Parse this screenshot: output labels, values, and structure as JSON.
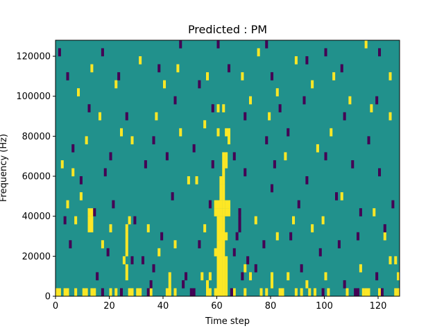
{
  "chart_data": {
    "type": "heatmap",
    "title": "Predicted : PM",
    "xlabel": "Time step",
    "ylabel": "Frequency (Hz)",
    "xlim": [
      0,
      128
    ],
    "ylim": [
      0,
      128000
    ],
    "x_ticks": [
      0,
      20,
      40,
      60,
      80,
      100,
      120
    ],
    "y_ticks": [
      0,
      20000,
      40000,
      60000,
      80000,
      100000,
      120000
    ],
    "x_tick_labels": [
      "0",
      "20",
      "40",
      "60",
      "80",
      "100",
      "120"
    ],
    "y_tick_labels": [
      "0",
      "20000",
      "40000",
      "60000",
      "80000",
      "100000",
      "120000"
    ],
    "colors": {
      "background": "#21918c",
      "low": "#440154",
      "high": "#fde725"
    },
    "rows": 32,
    "columns": 128,
    "cells_high": [
      [
        0,
        0,
        1
      ],
      [
        1,
        0,
        1
      ],
      [
        3,
        0,
        1
      ],
      [
        4,
        0,
        1
      ],
      [
        7,
        0,
        1
      ],
      [
        10,
        0,
        1
      ],
      [
        11,
        0,
        1
      ],
      [
        13,
        0,
        1
      ],
      [
        14,
        0,
        1
      ],
      [
        20,
        0,
        1
      ],
      [
        22,
        0,
        1
      ],
      [
        27,
        0,
        1
      ],
      [
        28,
        0,
        1
      ],
      [
        30,
        0,
        1
      ],
      [
        31,
        0,
        1
      ],
      [
        35,
        0,
        1
      ],
      [
        41,
        0,
        1
      ],
      [
        42,
        0,
        1
      ],
      [
        44,
        0,
        1
      ],
      [
        56,
        0,
        1
      ],
      [
        57,
        0,
        1
      ],
      [
        59,
        0,
        1
      ],
      [
        66,
        0,
        1
      ],
      [
        70,
        0,
        1
      ],
      [
        76,
        0,
        1
      ],
      [
        78,
        0,
        1
      ],
      [
        83,
        0,
        1
      ],
      [
        84,
        0,
        1
      ],
      [
        89,
        0,
        1
      ],
      [
        91,
        0,
        1
      ],
      [
        94,
        0,
        1
      ],
      [
        96,
        0,
        1
      ],
      [
        101,
        0,
        1
      ],
      [
        108,
        0,
        1
      ],
      [
        114,
        0,
        1
      ],
      [
        115,
        0,
        1
      ],
      [
        116,
        0,
        1
      ],
      [
        120,
        0,
        1
      ],
      [
        126,
        0,
        1
      ],
      [
        127,
        0,
        1
      ],
      [
        12,
        8,
        2
      ],
      [
        13,
        8,
        2
      ],
      [
        12,
        10,
        1
      ],
      [
        13,
        10,
        1
      ],
      [
        26,
        2,
        2
      ],
      [
        26,
        5,
        3
      ],
      [
        26,
        8,
        1
      ],
      [
        42,
        0,
        3
      ],
      [
        56,
        1,
        1
      ],
      [
        57,
        2,
        1
      ],
      [
        54,
        2,
        1
      ],
      [
        60,
        0,
        2
      ],
      [
        61,
        0,
        2
      ],
      [
        62,
        0,
        2
      ],
      [
        63,
        0,
        2
      ],
      [
        60,
        2,
        3
      ],
      [
        61,
        2,
        3
      ],
      [
        62,
        2,
        3
      ],
      [
        63,
        2,
        3
      ],
      [
        59,
        5,
        1
      ],
      [
        60,
        5,
        2
      ],
      [
        61,
        5,
        3
      ],
      [
        62,
        5,
        3
      ],
      [
        60,
        7,
        3
      ],
      [
        61,
        7,
        3
      ],
      [
        62,
        7,
        3
      ],
      [
        63,
        7,
        1
      ],
      [
        59,
        10,
        1
      ],
      [
        60,
        10,
        1
      ],
      [
        61,
        10,
        1
      ],
      [
        62,
        10,
        1
      ],
      [
        63,
        10,
        1
      ],
      [
        64,
        10,
        1
      ],
      [
        59,
        11,
        1
      ],
      [
        60,
        11,
        1
      ],
      [
        61,
        11,
        1
      ],
      [
        62,
        11,
        1
      ],
      [
        63,
        11,
        1
      ],
      [
        64,
        11,
        1
      ],
      [
        61,
        12,
        2
      ],
      [
        62,
        12,
        2
      ],
      [
        61,
        14,
        1
      ],
      [
        62,
        14,
        1
      ],
      [
        62,
        15,
        1
      ],
      [
        62,
        16,
        1
      ],
      [
        63,
        16,
        1
      ],
      [
        62,
        17,
        1
      ],
      [
        63,
        17,
        1
      ],
      [
        60,
        20,
        1
      ],
      [
        63,
        20,
        1
      ],
      [
        64,
        20,
        1
      ],
      [
        60,
        23,
        1
      ],
      [
        62,
        23,
        1
      ],
      [
        72,
        2,
        1
      ],
      [
        80,
        1,
        2
      ],
      [
        86,
        2,
        1
      ],
      [
        93,
        1,
        1
      ],
      [
        100,
        2,
        1
      ],
      [
        113,
        3,
        1
      ],
      [
        124,
        4,
        1
      ],
      [
        126,
        4,
        1
      ],
      [
        127,
        2,
        1
      ],
      [
        4,
        11,
        1
      ],
      [
        7,
        9,
        1
      ],
      [
        9,
        12,
        1
      ],
      [
        17,
        6,
        1
      ],
      [
        20,
        8,
        1
      ],
      [
        25,
        4,
        1
      ],
      [
        27,
        9,
        1
      ],
      [
        34,
        8,
        1
      ],
      [
        38,
        5,
        1
      ],
      [
        44,
        6,
        1
      ],
      [
        49,
        14,
        1
      ],
      [
        52,
        14,
        1
      ],
      [
        55,
        8,
        1
      ],
      [
        70,
        3,
        1
      ],
      [
        74,
        9,
        1
      ],
      [
        82,
        7,
        1
      ],
      [
        88,
        9,
        1
      ],
      [
        95,
        8,
        1
      ],
      [
        99,
        9,
        1
      ],
      [
        106,
        12,
        1
      ],
      [
        118,
        10,
        1
      ],
      [
        122,
        7,
        1
      ],
      [
        2,
        16,
        1
      ],
      [
        6,
        15,
        1
      ],
      [
        11,
        19,
        1
      ],
      [
        16,
        22,
        1
      ],
      [
        24,
        20,
        1
      ],
      [
        28,
        19,
        1
      ],
      [
        37,
        22,
        1
      ],
      [
        46,
        20,
        1
      ],
      [
        55,
        21,
        1
      ],
      [
        64,
        19,
        1
      ],
      [
        72,
        24,
        1
      ],
      [
        79,
        22,
        1
      ],
      [
        85,
        17,
        1
      ],
      [
        97,
        18,
        1
      ],
      [
        102,
        20,
        1
      ],
      [
        109,
        24,
        1
      ],
      [
        117,
        23,
        1
      ],
      [
        124,
        22,
        1
      ],
      [
        13,
        28,
        1
      ],
      [
        22,
        26,
        1
      ],
      [
        31,
        29,
        1
      ],
      [
        45,
        28,
        1
      ],
      [
        56,
        27,
        1
      ],
      [
        75,
        30,
        1
      ],
      [
        82,
        25,
        1
      ],
      [
        89,
        29,
        1
      ],
      [
        103,
        27,
        1
      ],
      [
        115,
        31,
        1
      ],
      [
        124,
        27,
        1
      ],
      [
        8,
        25,
        1
      ],
      [
        40,
        26,
        1
      ],
      [
        69,
        27,
        1
      ],
      [
        95,
        26,
        1
      ]
    ],
    "cells_low": [
      [
        17,
        0,
        1
      ],
      [
        24,
        0,
        1
      ],
      [
        34,
        0,
        1
      ],
      [
        35,
        1,
        1
      ],
      [
        50,
        0,
        1
      ],
      [
        51,
        0,
        1
      ],
      [
        65,
        0,
        1
      ],
      [
        111,
        0,
        1
      ],
      [
        112,
        0,
        1
      ],
      [
        121,
        0,
        1
      ],
      [
        99,
        0,
        1
      ],
      [
        15,
        2,
        1
      ],
      [
        32,
        4,
        1
      ],
      [
        36,
        3,
        1
      ],
      [
        47,
        1,
        1
      ],
      [
        48,
        2,
        1
      ],
      [
        69,
        2,
        1
      ],
      [
        71,
        4,
        1
      ],
      [
        74,
        3,
        1
      ],
      [
        91,
        3,
        1
      ],
      [
        107,
        1,
        1
      ],
      [
        119,
        2,
        1
      ],
      [
        5,
        6,
        1
      ],
      [
        19,
        5,
        1
      ],
      [
        28,
        4,
        1
      ],
      [
        39,
        7,
        1
      ],
      [
        53,
        6,
        1
      ],
      [
        66,
        5,
        1
      ],
      [
        67,
        7,
        1
      ],
      [
        68,
        8,
        2
      ],
      [
        77,
        6,
        1
      ],
      [
        87,
        7,
        1
      ],
      [
        98,
        5,
        1
      ],
      [
        105,
        6,
        1
      ],
      [
        112,
        7,
        1
      ],
      [
        122,
        8,
        1
      ],
      [
        3,
        9,
        1
      ],
      [
        14,
        10,
        1
      ],
      [
        21,
        11,
        1
      ],
      [
        29,
        9,
        1
      ],
      [
        43,
        12,
        1
      ],
      [
        57,
        11,
        1
      ],
      [
        68,
        10,
        1
      ],
      [
        80,
        13,
        1
      ],
      [
        90,
        11,
        1
      ],
      [
        104,
        12,
        1
      ],
      [
        113,
        10,
        1
      ],
      [
        125,
        11,
        1
      ],
      [
        9,
        14,
        1
      ],
      [
        18,
        15,
        1
      ],
      [
        33,
        16,
        1
      ],
      [
        41,
        17,
        1
      ],
      [
        58,
        16,
        1
      ],
      [
        70,
        15,
        1
      ],
      [
        81,
        16,
        1
      ],
      [
        93,
        14,
        1
      ],
      [
        110,
        16,
        1
      ],
      [
        120,
        15,
        1
      ],
      [
        6,
        18,
        1
      ],
      [
        20,
        17,
        1
      ],
      [
        36,
        19,
        1
      ],
      [
        51,
        18,
        1
      ],
      [
        66,
        17,
        1
      ],
      [
        78,
        19,
        1
      ],
      [
        86,
        20,
        1
      ],
      [
        100,
        17,
        1
      ],
      [
        116,
        19,
        1
      ],
      [
        12,
        23,
        1
      ],
      [
        26,
        22,
        1
      ],
      [
        44,
        24,
        1
      ],
      [
        58,
        23,
        1
      ],
      [
        70,
        22,
        1
      ],
      [
        83,
        23,
        1
      ],
      [
        92,
        24,
        1
      ],
      [
        107,
        22,
        1
      ],
      [
        119,
        24,
        1
      ],
      [
        4,
        27,
        1
      ],
      [
        23,
        27,
        1
      ],
      [
        38,
        28,
        1
      ],
      [
        53,
        26,
        1
      ],
      [
        64,
        28,
        1
      ],
      [
        80,
        27,
        1
      ],
      [
        93,
        29,
        1
      ],
      [
        106,
        28,
        1
      ],
      [
        120,
        30,
        1
      ],
      [
        17,
        30,
        1
      ],
      [
        60,
        31,
        1
      ],
      [
        78,
        31,
        1
      ],
      [
        100,
        30,
        1
      ],
      [
        1,
        30,
        1
      ],
      [
        46,
        31,
        1
      ]
    ]
  }
}
